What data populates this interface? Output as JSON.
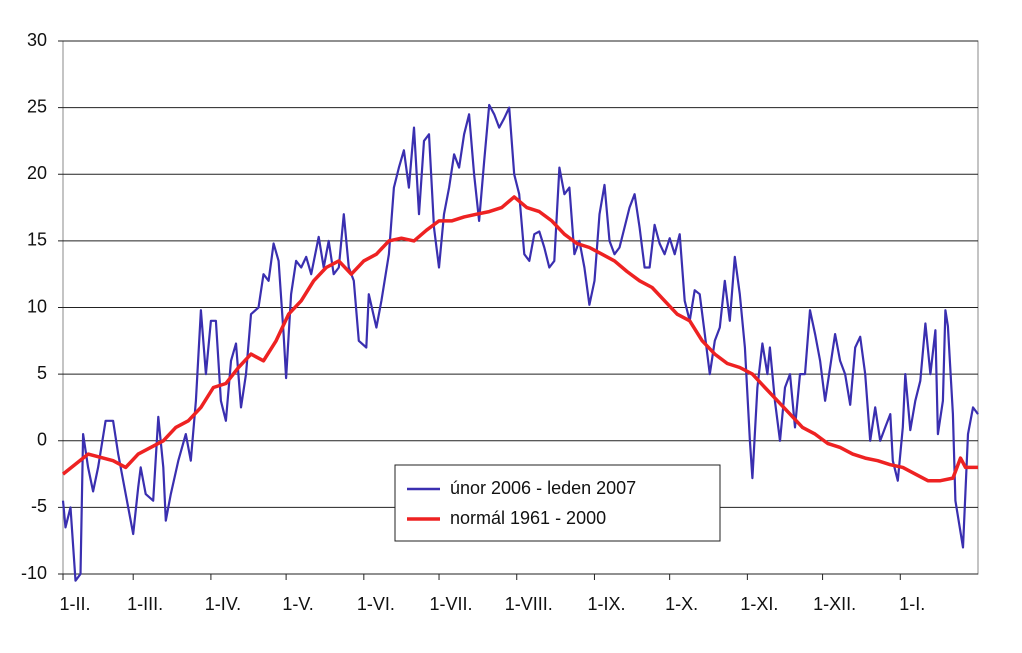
{
  "chart_data": {
    "type": "line",
    "xlim": [
      0,
      365
    ],
    "xticks": [
      {
        "value": 0,
        "label": "1-II."
      },
      {
        "value": 28,
        "label": "1-III."
      },
      {
        "value": 59,
        "label": "1-IV."
      },
      {
        "value": 89,
        "label": "1-V."
      },
      {
        "value": 120,
        "label": "1-VI."
      },
      {
        "value": 150,
        "label": "1-VII."
      },
      {
        "value": 181,
        "label": "1-VIII."
      },
      {
        "value": 212,
        "label": "1-IX."
      },
      {
        "value": 242,
        "label": "1-X."
      },
      {
        "value": 273,
        "label": "1-XI."
      },
      {
        "value": 303,
        "label": "1-XII."
      },
      {
        "value": 334,
        "label": "1-I."
      }
    ],
    "ylim": [
      -10,
      30
    ],
    "yticks": [
      -10,
      -5,
      0,
      5,
      10,
      15,
      20,
      25,
      30
    ],
    "grid": true,
    "legend": "center",
    "series": [
      {
        "name": "únor 2006 - leden 2007",
        "color": "#3a2fb0",
        "x": [
          0,
          1,
          3,
          5,
          7,
          8,
          10,
          12,
          14,
          17,
          20,
          22,
          25,
          28,
          30,
          31,
          33,
          36,
          38,
          40,
          41,
          43,
          46,
          49,
          51,
          53,
          55,
          57,
          59,
          61,
          63,
          65,
          67,
          69,
          71,
          73,
          75,
          78,
          80,
          82,
          84,
          86,
          88,
          89,
          91,
          93,
          95,
          97,
          99,
          102,
          104,
          106,
          108,
          110,
          112,
          114,
          116,
          118,
          121,
          122,
          125,
          127,
          130,
          132,
          134,
          136,
          138,
          140,
          142,
          144,
          146,
          148,
          150,
          152,
          154,
          156,
          158,
          160,
          162,
          164,
          166,
          168,
          170,
          172,
          174,
          176,
          178,
          180,
          182,
          184,
          186,
          188,
          190,
          192,
          194,
          196,
          198,
          200,
          202,
          204,
          206,
          208,
          210,
          212,
          214,
          216,
          218,
          220,
          222,
          224,
          226,
          228,
          230,
          232,
          234,
          236,
          238,
          240,
          242,
          244,
          246,
          248,
          250,
          252,
          254,
          256,
          258,
          260,
          262,
          264,
          266,
          268,
          270,
          272,
          274,
          275,
          277,
          279,
          281,
          282,
          284,
          286,
          288,
          290,
          292,
          294,
          296,
          298,
          300,
          302,
          304,
          306,
          308,
          310,
          312,
          314,
          316,
          318,
          320,
          322,
          324,
          326,
          328,
          330,
          331,
          333,
          335,
          336,
          338,
          340,
          342,
          344,
          346,
          348,
          349,
          351,
          352,
          353,
          355,
          356,
          359,
          361,
          363,
          365
        ],
        "values": [
          -4.5,
          -6.5,
          -5,
          -10.5,
          -10,
          0.5,
          -2,
          -3.8,
          -2,
          1.5,
          1.5,
          -1,
          -4,
          -7,
          -3.5,
          -2,
          -4,
          -4.5,
          1.8,
          -2,
          -6,
          -4,
          -1.5,
          0.5,
          -1.5,
          3,
          9.8,
          5,
          9,
          9,
          3,
          1.5,
          6,
          7.3,
          2.5,
          5,
          9.5,
          10,
          12.5,
          12,
          14.8,
          13.5,
          8,
          4.7,
          11,
          13.5,
          13,
          13.8,
          12.5,
          15.3,
          13,
          15,
          12.5,
          13,
          17,
          13,
          12,
          7.5,
          7,
          11,
          8.5,
          10.5,
          14,
          19,
          20.5,
          21.8,
          19,
          23.5,
          17,
          22.5,
          23,
          16,
          13,
          17,
          19,
          21.5,
          20.5,
          23,
          24.5,
          20,
          16.5,
          21,
          25.2,
          24.5,
          23.5,
          24.2,
          25,
          20,
          18.5,
          14,
          13.5,
          15.5,
          15.7,
          14.5,
          13,
          13.5,
          20.5,
          18.5,
          19,
          14,
          15,
          13,
          10.2,
          12,
          17,
          19.2,
          15,
          14,
          14.5,
          16,
          17.5,
          18.5,
          16,
          13,
          13,
          16.2,
          14.8,
          14,
          15.2,
          14,
          15.5,
          10.5,
          9,
          11.3,
          11,
          8,
          5,
          7.5,
          8.5,
          12,
          9,
          13.8,
          11,
          7,
          0,
          -2.8,
          4,
          7.3,
          5,
          7,
          3,
          0,
          4,
          5,
          1,
          5,
          5,
          9.8,
          8,
          6,
          3,
          5.5,
          8,
          6,
          5,
          2.7,
          7,
          7.8,
          5,
          0,
          2.5,
          0,
          1,
          2,
          -1.5,
          -3,
          1,
          5,
          0.8,
          3,
          4.5,
          8.8,
          5,
          8.3,
          0.5,
          3,
          9.8,
          8.6,
          2,
          -4.5,
          -8,
          0.5,
          2.5,
          2
        ]
      },
      {
        "name": "normál 1961 - 2000",
        "color": "#ee2222",
        "x": [
          0,
          10,
          20,
          25,
          30,
          40,
          45,
          50,
          55,
          60,
          65,
          70,
          75,
          80,
          85,
          90,
          95,
          100,
          105,
          110,
          115,
          120,
          125,
          130,
          135,
          140,
          145,
          150,
          155,
          160,
          165,
          170,
          175,
          180,
          185,
          190,
          195,
          200,
          205,
          210,
          215,
          220,
          225,
          230,
          235,
          240,
          245,
          250,
          255,
          260,
          265,
          270,
          275,
          280,
          285,
          290,
          295,
          300,
          305,
          310,
          315,
          320,
          325,
          330,
          335,
          340,
          345,
          350,
          355,
          358,
          360,
          365
        ],
        "values": [
          -2.5,
          -1,
          -1.5,
          -2,
          -1,
          0,
          1,
          1.5,
          2.5,
          4,
          4.3,
          5.5,
          6.5,
          6,
          7.5,
          9.5,
          10.5,
          12,
          13,
          13.5,
          12.5,
          13.5,
          14,
          15,
          15.2,
          15,
          15.8,
          16.5,
          16.5,
          16.8,
          17,
          17.2,
          17.5,
          18.3,
          17.5,
          17.2,
          16.5,
          15.5,
          14.8,
          14.5,
          14,
          13.5,
          12.7,
          12,
          11.5,
          10.5,
          9.5,
          9,
          7.5,
          6.5,
          5.8,
          5.5,
          5,
          4,
          3,
          2,
          1,
          0.5,
          -0.2,
          -0.5,
          -1,
          -1.3,
          -1.5,
          -1.8,
          -2,
          -2.5,
          -3,
          -3,
          -2.8,
          -1.3,
          -2,
          -2
        ]
      }
    ]
  }
}
